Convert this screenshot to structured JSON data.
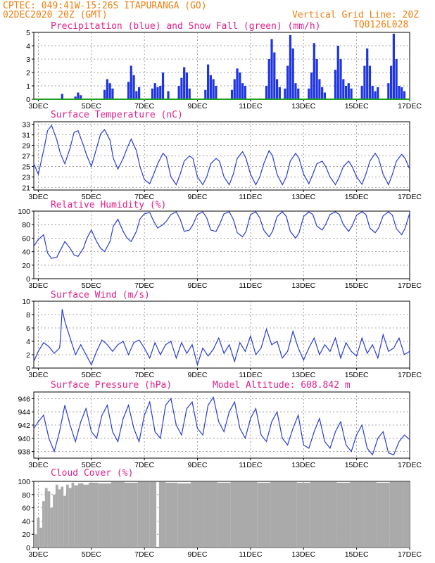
{
  "header": {
    "line1_left": "CPTEC:  049:41W-15:26S  ITAPURANGA (GO)",
    "line2_left": "02DEC2020 20Z (GMT)",
    "line2_right": "Vertical Grid Line: 20Z",
    "line3_right": "TQ0126L028"
  },
  "colors": {
    "header": "#f07f10",
    "title": "#e0208a",
    "line": "#2a3bd6",
    "precip": "#1f35e0",
    "snow": "#20a020",
    "cloud": "#aaaaaa",
    "grid": "#888888"
  },
  "chart_data": [
    {
      "type": "bar",
      "title": "Precipitation (blue) and Snow Fall (green) (mm/h)",
      "xtick_labels": [
        "3DEC",
        "5DEC",
        "7DEC",
        "9DEC",
        "11DEC",
        "13DEC",
        "15DEC",
        "17DEC"
      ],
      "xlim_days": [
        2.83,
        17.0
      ],
      "ylim": [
        0,
        5
      ],
      "yticks": [
        0,
        1,
        2,
        3,
        4,
        5
      ],
      "grid": true,
      "series": [
        {
          "name": "Precipitation",
          "x": [
            3.9,
            4.4,
            4.5,
            4.6,
            5.5,
            5.6,
            5.7,
            5.8,
            6.4,
            6.5,
            6.6,
            6.7,
            6.8,
            7.3,
            7.4,
            7.5,
            7.6,
            7.7,
            7.9,
            8.3,
            8.4,
            8.5,
            8.6,
            8.7,
            9.3,
            9.4,
            9.5,
            9.6,
            9.7,
            10.3,
            10.4,
            10.5,
            10.6,
            10.7,
            10.8,
            11.6,
            11.7,
            11.8,
            11.9,
            12.0,
            12.1,
            12.3,
            12.4,
            12.5,
            12.6,
            12.7,
            12.8,
            13.2,
            13.3,
            13.4,
            13.5,
            13.6,
            13.7,
            13.8,
            14.2,
            14.3,
            14.4,
            14.5,
            14.6,
            14.7,
            14.8,
            15.2,
            15.3,
            15.4,
            15.5,
            15.6,
            15.7,
            15.8,
            16.2,
            16.3,
            16.4,
            16.5,
            16.6,
            16.7,
            16.8
          ],
          "values": [
            0.4,
            0.2,
            0.5,
            0.3,
            0.7,
            1.5,
            1.2,
            0.8,
            1.3,
            2.5,
            1.8,
            0.6,
            0.9,
            0.8,
            1.2,
            0.9,
            1.0,
            2.0,
            0.6,
            1.0,
            1.6,
            2.4,
            2.0,
            0.8,
            0.7,
            2.6,
            1.8,
            1.5,
            1.0,
            0.7,
            1.5,
            2.3,
            2.0,
            1.2,
            1.0,
            1.0,
            3.0,
            4.5,
            3.5,
            1.5,
            0.9,
            0.8,
            2.5,
            4.8,
            3.8,
            1.2,
            0.8,
            0.8,
            2.0,
            4.2,
            3.0,
            1.5,
            0.9,
            0.5,
            2.2,
            4.0,
            3.0,
            1.5,
            1.0,
            1.2,
            0.8,
            1.0,
            2.5,
            3.8,
            2.5,
            1.0,
            0.6,
            0.9,
            1.2,
            2.5,
            4.9,
            3.0,
            1.0,
            0.9,
            0.6
          ]
        },
        {
          "name": "Snow Fall",
          "x": [
            2.83,
            17.0
          ],
          "values": [
            0,
            0
          ]
        }
      ]
    },
    {
      "type": "line",
      "title": "Surface Temperature (nC)",
      "xtick_labels": [
        "3DEC",
        "5DEC",
        "7DEC",
        "9DEC",
        "11DEC",
        "13DEC",
        "15DEC",
        "17DEC"
      ],
      "ylim": [
        20.5,
        33.5
      ],
      "yticks": [
        21,
        23,
        25,
        27,
        29,
        31,
        33
      ],
      "grid": true,
      "x": [
        2.83,
        3.0,
        3.2,
        3.35,
        3.5,
        3.7,
        3.83,
        4.0,
        4.2,
        4.35,
        4.5,
        4.7,
        4.83,
        5.0,
        5.2,
        5.35,
        5.5,
        5.7,
        5.83,
        6.0,
        6.2,
        6.35,
        6.5,
        6.7,
        6.83,
        7.0,
        7.2,
        7.35,
        7.5,
        7.7,
        7.83,
        8.0,
        8.2,
        8.35,
        8.5,
        8.7,
        8.83,
        9.0,
        9.2,
        9.35,
        9.5,
        9.7,
        9.83,
        10.0,
        10.2,
        10.35,
        10.5,
        10.7,
        10.83,
        11.0,
        11.2,
        11.35,
        11.5,
        11.7,
        11.83,
        12.0,
        12.2,
        12.35,
        12.5,
        12.7,
        12.83,
        13.0,
        13.2,
        13.35,
        13.5,
        13.7,
        13.83,
        14.0,
        14.2,
        14.35,
        14.5,
        14.7,
        14.83,
        15.0,
        15.2,
        15.35,
        15.5,
        15.7,
        15.83,
        16.0,
        16.2,
        16.35,
        16.5,
        16.7,
        16.83,
        17.0
      ],
      "values": [
        25.5,
        23.5,
        28.0,
        31.8,
        32.8,
        30.0,
        27.5,
        25.5,
        28.5,
        31.5,
        31.8,
        29.0,
        27.0,
        25.0,
        28.5,
        31.2,
        32.0,
        30.0,
        26.5,
        24.5,
        26.5,
        28.5,
        30.2,
        28.0,
        25.0,
        22.5,
        21.7,
        23.5,
        25.5,
        27.5,
        26.8,
        23.0,
        21.5,
        23.5,
        26.0,
        27.0,
        26.5,
        23.0,
        21.5,
        23.0,
        25.5,
        26.5,
        26.0,
        23.0,
        21.5,
        23.5,
        26.5,
        27.8,
        26.5,
        23.5,
        21.5,
        23.0,
        25.5,
        28.0,
        27.0,
        23.5,
        21.5,
        23.0,
        26.0,
        27.5,
        26.5,
        23.5,
        21.7,
        23.5,
        25.5,
        26.0,
        25.0,
        23.0,
        21.5,
        23.0,
        25.0,
        26.0,
        25.0,
        23.0,
        21.6,
        23.5,
        26.0,
        27.5,
        26.5,
        23.5,
        21.5,
        23.5,
        26.0,
        27.3,
        26.5,
        24.5
      ]
    },
    {
      "type": "line",
      "title": "Relative Humidity (%)",
      "xtick_labels": [
        "3DEC",
        "5DEC",
        "7DEC",
        "9DEC",
        "11DEC",
        "13DEC",
        "15DEC",
        "17DEC"
      ],
      "ylim": [
        0,
        100
      ],
      "yticks": [
        0,
        20,
        40,
        60,
        80,
        100
      ],
      "grid": true,
      "x": [
        2.83,
        3.0,
        3.2,
        3.35,
        3.5,
        3.7,
        3.83,
        4.0,
        4.2,
        4.35,
        4.5,
        4.7,
        4.83,
        5.0,
        5.2,
        5.35,
        5.5,
        5.7,
        5.83,
        6.0,
        6.2,
        6.35,
        6.5,
        6.7,
        6.83,
        7.0,
        7.2,
        7.35,
        7.5,
        7.7,
        7.83,
        8.0,
        8.2,
        8.35,
        8.5,
        8.7,
        8.83,
        9.0,
        9.2,
        9.35,
        9.5,
        9.7,
        9.83,
        10.0,
        10.2,
        10.35,
        10.5,
        10.7,
        10.83,
        11.0,
        11.2,
        11.35,
        11.5,
        11.7,
        11.83,
        12.0,
        12.2,
        12.35,
        12.5,
        12.7,
        12.83,
        13.0,
        13.2,
        13.35,
        13.5,
        13.7,
        13.83,
        14.0,
        14.2,
        14.35,
        14.5,
        14.7,
        14.83,
        15.0,
        15.2,
        15.35,
        15.5,
        15.7,
        15.83,
        16.0,
        16.2,
        16.35,
        16.5,
        16.7,
        16.83,
        17.0
      ],
      "values": [
        48,
        58,
        65,
        38,
        30,
        32,
        42,
        55,
        45,
        35,
        33,
        45,
        60,
        72,
        55,
        45,
        40,
        55,
        78,
        88,
        70,
        60,
        55,
        70,
        88,
        96,
        98,
        85,
        75,
        80,
        85,
        95,
        99,
        88,
        70,
        72,
        80,
        95,
        99,
        90,
        72,
        70,
        80,
        96,
        99,
        88,
        68,
        62,
        70,
        95,
        99,
        90,
        72,
        62,
        70,
        92,
        99,
        92,
        70,
        60,
        68,
        92,
        99,
        95,
        78,
        72,
        80,
        95,
        99,
        95,
        80,
        70,
        78,
        94,
        99,
        95,
        75,
        68,
        75,
        93,
        99,
        94,
        74,
        65,
        75,
        97
      ]
    },
    {
      "type": "line",
      "title": "Surface Wind (m/s)",
      "xtick_labels": [
        "3DEC",
        "5DEC",
        "7DEC",
        "9DEC",
        "11DEC",
        "13DEC",
        "15DEC",
        "17DEC"
      ],
      "ylim": [
        0,
        10
      ],
      "yticks": [
        0,
        2,
        4,
        6,
        8,
        10
      ],
      "grid": true,
      "x": [
        2.83,
        3.0,
        3.2,
        3.4,
        3.6,
        3.8,
        3.83,
        3.9,
        4.0,
        4.2,
        4.4,
        4.6,
        4.8,
        5.0,
        5.2,
        5.4,
        5.6,
        5.8,
        6.0,
        6.2,
        6.4,
        6.6,
        6.8,
        7.0,
        7.2,
        7.4,
        7.6,
        7.8,
        8.0,
        8.2,
        8.4,
        8.6,
        8.8,
        9.0,
        9.2,
        9.4,
        9.6,
        9.8,
        10.0,
        10.2,
        10.4,
        10.6,
        10.8,
        11.0,
        11.2,
        11.4,
        11.6,
        11.8,
        12.0,
        12.2,
        12.4,
        12.6,
        12.8,
        13.0,
        13.2,
        13.4,
        13.6,
        13.8,
        14.0,
        14.2,
        14.4,
        14.6,
        14.8,
        15.0,
        15.2,
        15.4,
        15.6,
        15.8,
        16.0,
        16.2,
        16.4,
        16.6,
        16.8,
        17.0
      ],
      "values": [
        1.0,
        2.5,
        3.8,
        3.2,
        2.2,
        3.0,
        4.0,
        8.8,
        7.0,
        4.5,
        2.0,
        3.5,
        2.0,
        0.5,
        2.5,
        4.2,
        3.5,
        2.5,
        3.5,
        4.0,
        2.0,
        3.8,
        4.2,
        3.0,
        1.5,
        3.8,
        2.0,
        3.5,
        4.0,
        1.5,
        3.8,
        2.2,
        3.5,
        0.5,
        3.0,
        1.8,
        2.8,
        4.5,
        2.2,
        3.5,
        1.0,
        3.8,
        2.5,
        4.8,
        2.0,
        3.0,
        5.8,
        3.5,
        4.0,
        1.5,
        2.5,
        5.5,
        3.0,
        1.2,
        3.0,
        4.5,
        2.0,
        3.5,
        2.5,
        4.5,
        1.5,
        3.8,
        2.5,
        1.8,
        4.5,
        2.2,
        3.5,
        1.5,
        5.0,
        2.5,
        3.0,
        4.5,
        2.0,
        2.5
      ]
    },
    {
      "type": "line",
      "title": "Surface Pressure (hPa)",
      "annotation": "Model Altitude: 608.842 m",
      "xtick_labels": [
        "3DEC",
        "5DEC",
        "7DEC",
        "9DEC",
        "11DEC",
        "13DEC",
        "15DEC",
        "17DEC"
      ],
      "ylim": [
        937,
        947
      ],
      "yticks": [
        938,
        940,
        942,
        944,
        946
      ],
      "grid": true,
      "x": [
        2.83,
        3.0,
        3.2,
        3.4,
        3.6,
        3.8,
        4.0,
        4.2,
        4.4,
        4.6,
        4.8,
        5.0,
        5.2,
        5.4,
        5.6,
        5.8,
        6.0,
        6.2,
        6.4,
        6.6,
        6.8,
        7.0,
        7.2,
        7.4,
        7.6,
        7.8,
        8.0,
        8.2,
        8.4,
        8.6,
        8.8,
        9.0,
        9.2,
        9.4,
        9.6,
        9.8,
        10.0,
        10.2,
        10.4,
        10.6,
        10.8,
        11.0,
        11.2,
        11.4,
        11.6,
        11.8,
        12.0,
        12.2,
        12.4,
        12.6,
        12.8,
        13.0,
        13.2,
        13.4,
        13.6,
        13.8,
        14.0,
        14.2,
        14.4,
        14.6,
        14.8,
        15.0,
        15.2,
        15.4,
        15.6,
        15.8,
        16.0,
        16.2,
        16.4,
        16.6,
        16.8,
        17.0
      ],
      "values": [
        941.5,
        942.5,
        943.5,
        940.0,
        938.0,
        941.0,
        945.0,
        942.0,
        939.5,
        942.5,
        944.5,
        941.0,
        940.0,
        943.5,
        945.0,
        941.0,
        939.5,
        943.0,
        945.0,
        941.5,
        939.5,
        943.5,
        945.5,
        941.0,
        940.0,
        945.0,
        946.0,
        942.0,
        940.5,
        944.5,
        945.5,
        941.5,
        940.5,
        945.0,
        946.2,
        942.5,
        941.0,
        944.0,
        945.5,
        941.5,
        940.0,
        943.0,
        944.5,
        940.5,
        939.5,
        942.5,
        944.0,
        940.0,
        939.0,
        941.5,
        943.5,
        939.0,
        938.5,
        941.0,
        943.0,
        939.5,
        938.5,
        941.0,
        942.5,
        939.0,
        938.0,
        940.5,
        942.0,
        938.5,
        937.5,
        940.0,
        941.0,
        937.8,
        937.5,
        939.5,
        940.5,
        939.8
      ]
    },
    {
      "type": "bar",
      "title": "Cloud Cover (%)",
      "xtick_labels": [
        "3DEC",
        "5DEC",
        "7DEC",
        "9DEC",
        "11DEC",
        "13DEC",
        "15DEC",
        "17DEC"
      ],
      "ylim": [
        0,
        100
      ],
      "yticks": [
        0,
        20,
        40,
        60,
        80,
        100
      ],
      "grid": true,
      "x": [
        2.9,
        3.0,
        3.1,
        3.2,
        3.3,
        3.4,
        3.5,
        3.6,
        3.7,
        3.8,
        3.9,
        4.0,
        4.1,
        4.2,
        4.3,
        4.4,
        4.6,
        4.8,
        5.0,
        5.5,
        6.0,
        6.5,
        7.0,
        7.4,
        7.5,
        7.6,
        8.0,
        8.5,
        9.0,
        9.5,
        10.0,
        10.5,
        11.0,
        11.5,
        12.0,
        12.5,
        13.0,
        13.5,
        14.0,
        14.5,
        15.0,
        15.5,
        16.0,
        16.5,
        17.0
      ],
      "values": [
        20,
        45,
        30,
        70,
        90,
        85,
        60,
        80,
        95,
        88,
        92,
        78,
        95,
        90,
        98,
        94,
        97,
        95,
        98,
        97,
        99,
        98,
        99,
        99,
        0,
        99,
        98,
        97,
        99,
        99,
        98,
        99,
        99,
        98,
        99,
        99,
        98,
        99,
        99,
        98,
        99,
        99,
        98,
        99,
        99
      ]
    }
  ]
}
